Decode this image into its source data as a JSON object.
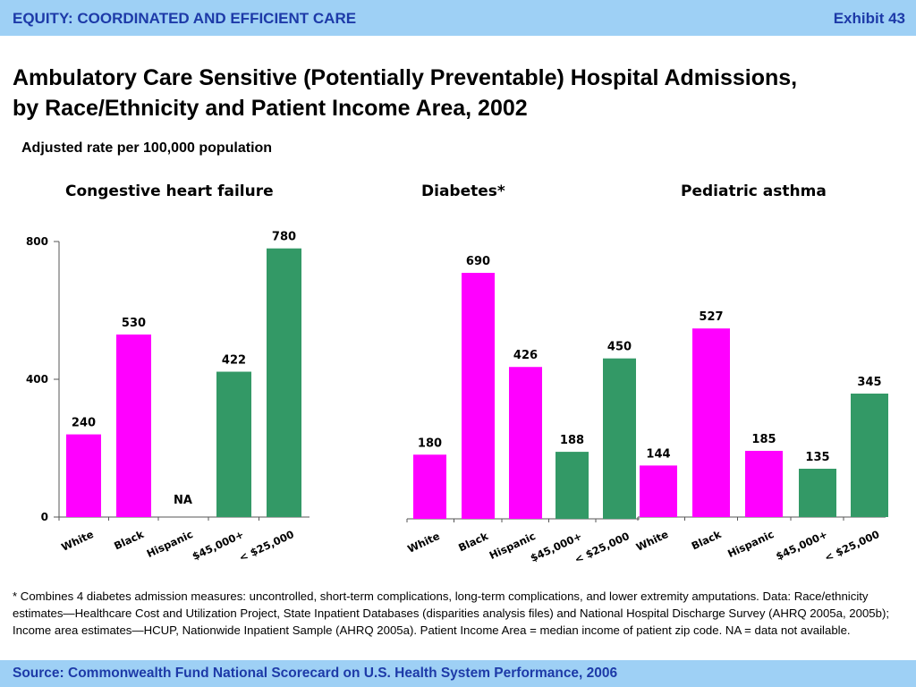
{
  "header": {
    "title": "EQUITY: COORDINATED AND EFFICIENT CARE",
    "exhibit": "Exhibit 43"
  },
  "title_line1": "Ambulatory Care Sensitive (Potentially Preventable) Hospital Admissions,",
  "title_line2": "by Race/Ethnicity and Patient Income Area, 2002",
  "subtitle": "Adjusted rate per 100,000 population",
  "colors": {
    "race": "#ff00ff",
    "income": "#339966",
    "header_bg": "#9ed0f5",
    "header_text": "#1d3aa8"
  },
  "chart_data": [
    {
      "type": "bar",
      "title": "Congestive heart failure",
      "categories": [
        "White",
        "Black",
        "Hispanic",
        "$45,000+",
        "< $25,000"
      ],
      "values": [
        240,
        530,
        null,
        422,
        780
      ],
      "value_labels": [
        "240",
        "530",
        "NA",
        "422",
        "780"
      ],
      "groups": [
        "race",
        "race",
        "race",
        "income",
        "income"
      ],
      "ylim": [
        0,
        800
      ],
      "yticks": [
        0,
        400,
        800
      ]
    },
    {
      "type": "bar",
      "title": "Diabetes*",
      "categories": [
        "White",
        "Black",
        "Hispanic",
        "$45,000+",
        "< $25,000"
      ],
      "values": [
        180,
        690,
        426,
        188,
        450
      ],
      "value_labels": [
        "180",
        "690",
        "426",
        "188",
        "450"
      ],
      "groups": [
        "race",
        "race",
        "race",
        "income",
        "income"
      ],
      "ylim": [
        0,
        800
      ]
    },
    {
      "type": "bar",
      "title": "Pediatric asthma",
      "categories": [
        "White",
        "Black",
        "Hispanic",
        "$45,000+",
        "< $25,000"
      ],
      "values": [
        144,
        527,
        185,
        135,
        345
      ],
      "value_labels": [
        "144",
        "527",
        "185",
        "135",
        "345"
      ],
      "groups": [
        "race",
        "race",
        "race",
        "income",
        "income"
      ],
      "ylim": [
        0,
        700
      ]
    }
  ],
  "footnote": "* Combines 4 diabetes admission measures: uncontrolled, short-term complications, long-term complications, and lower extremity amputations. Data: Race/ethnicity estimates—Healthcare Cost and Utilization Project, State Inpatient Databases (disparities analysis files) and National Hospital Discharge Survey (AHRQ 2005a, 2005b); Income area estimates—HCUP, Nationwide Inpatient Sample (AHRQ 2005a). Patient Income Area = median income of patient zip code. NA = data not available.",
  "source": "Source: Commonwealth Fund National Scorecard on U.S. Health System Performance, 2006"
}
